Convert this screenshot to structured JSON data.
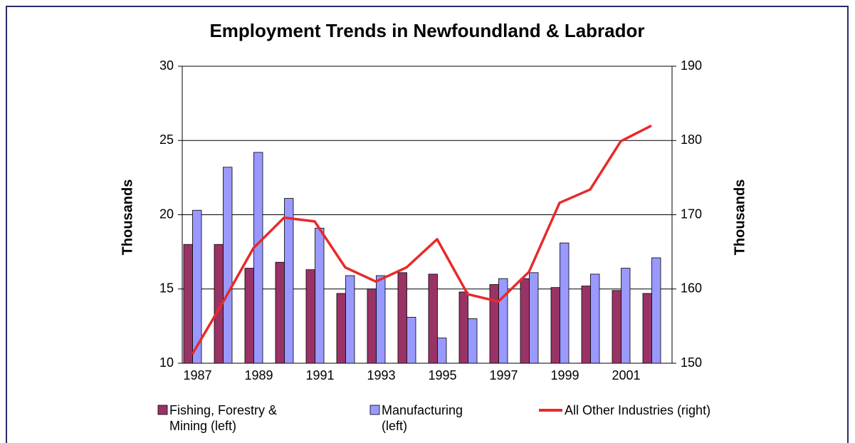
{
  "chart_data": {
    "type": "bar_line",
    "title": "Employment Trends in Newfoundland & Labrador",
    "ylabel": "Thousands",
    "y2label": "Thousands",
    "categories": [
      "1987",
      null,
      "1989",
      null,
      "1991",
      null,
      "1993",
      null,
      "1995",
      null,
      "1997",
      null,
      "1999",
      null,
      "2001",
      null
    ],
    "series": [
      {
        "name": "Fishing, Forestry & Mining (left)",
        "color": "#993366",
        "type": "bar",
        "values": [
          18,
          18,
          16.4,
          16.8,
          16.3,
          14.7,
          15,
          16.1,
          16,
          14.8,
          15.3,
          15.7,
          15.1,
          15.2,
          14.9,
          14.7
        ]
      },
      {
        "name": "Manufacturing (left)",
        "color": "#9999ff",
        "type": "bar",
        "values": [
          20.3,
          23.2,
          24.2,
          21.1,
          19.1,
          15.9,
          15.9,
          13.1,
          11.7,
          13,
          15.7,
          16.1,
          18.1,
          16,
          16.4,
          17.1
        ]
      },
      {
        "name": "All Other Industries (right)",
        "color": "#e8292b",
        "type": "line",
        "axis": "y2",
        "values": [
          151.2,
          158.2,
          165.5,
          169.6,
          169.1,
          162.9,
          161.0,
          162.9,
          166.7,
          159.3,
          158.3,
          162.3,
          171.6,
          173.4,
          179.9,
          182.0
        ]
      }
    ],
    "ylim": [
      10,
      30
    ],
    "yticks": [
      10,
      15,
      20,
      25,
      30
    ],
    "y2lim": [
      150,
      190
    ],
    "y2ticks": [
      150,
      160,
      170,
      180,
      190
    ],
    "grid": true,
    "legend": "bottom"
  }
}
